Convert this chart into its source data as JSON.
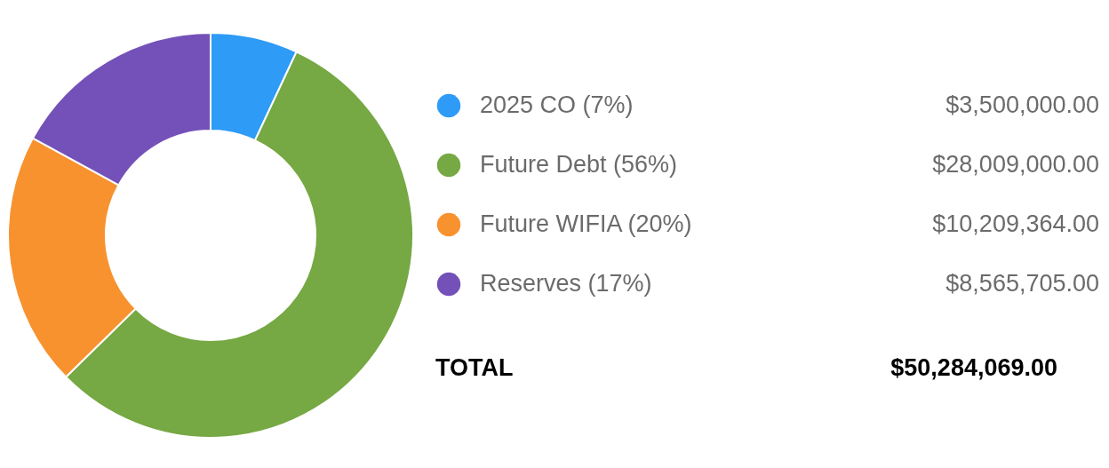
{
  "chart_data": {
    "type": "donut",
    "legend": "right",
    "categories": [
      "2025 CO (7%)",
      "Future Debt (56%)",
      "Future WIFIA (20%)",
      "Reserves (17%)"
    ],
    "values": [
      3500000,
      28009000,
      10209364,
      8565705
    ],
    "colors": [
      "#2e9bf6",
      "#76a843",
      "#f8922e",
      "#7451b8"
    ],
    "value_labels": [
      "$3,500,000.00",
      "$28,009,000.00",
      "$10,209,364.00",
      "$8,565,705.00"
    ],
    "annotations": [
      "TOTAL",
      "$50,284,069.00"
    ]
  }
}
